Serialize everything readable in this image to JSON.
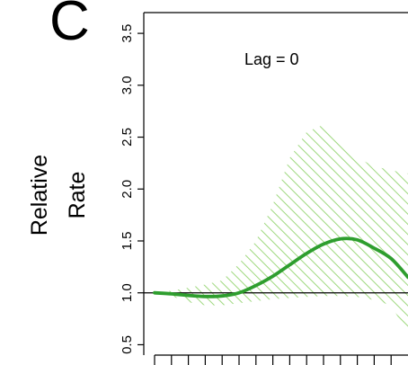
{
  "chart_data": {
    "type": "line",
    "panel_letter": "C",
    "annotation": "Lag = 0",
    "ylabel_line1": "Relative",
    "ylabel_line2": "Rate",
    "ylim": [
      0.4,
      3.7
    ],
    "yticks": [
      {
        "value": 0.5,
        "label": "0.5"
      },
      {
        "value": 1.0,
        "label": "1.0"
      },
      {
        "value": 1.5,
        "label": "1.5"
      },
      {
        "value": 2.0,
        "label": "2.0"
      },
      {
        "value": 2.5,
        "label": "2.5"
      },
      {
        "value": 3.0,
        "label": "3.0"
      },
      {
        "value": 3.5,
        "label": "3.5"
      }
    ],
    "reference_line": 1.0,
    "grid": false,
    "colors": {
      "estimate": "#2e9e2e",
      "confidence_band": "#9ed87e",
      "axis": "#000000"
    },
    "series": [
      {
        "x": [
          0,
          1,
          2,
          3,
          4,
          5,
          6,
          7,
          8,
          9,
          10,
          11,
          12,
          13,
          14,
          15
        ],
        "values": [
          1.0,
          0.99,
          0.975,
          0.965,
          0.97,
          1.0,
          1.07,
          1.16,
          1.27,
          1.38,
          1.47,
          1.52,
          1.51,
          1.43,
          1.33,
          1.15
        ],
        "lower": [
          1.0,
          0.97,
          0.91,
          0.88,
          0.88,
          0.9,
          0.92,
          0.94,
          0.95,
          0.96,
          0.97,
          0.97,
          0.96,
          0.93,
          0.88,
          0.6
        ],
        "upper": [
          1.0,
          1.02,
          1.05,
          1.08,
          1.12,
          1.28,
          1.5,
          1.85,
          2.3,
          2.55,
          2.62,
          2.45,
          2.3,
          2.22,
          2.18,
          2.15
        ]
      }
    ]
  }
}
